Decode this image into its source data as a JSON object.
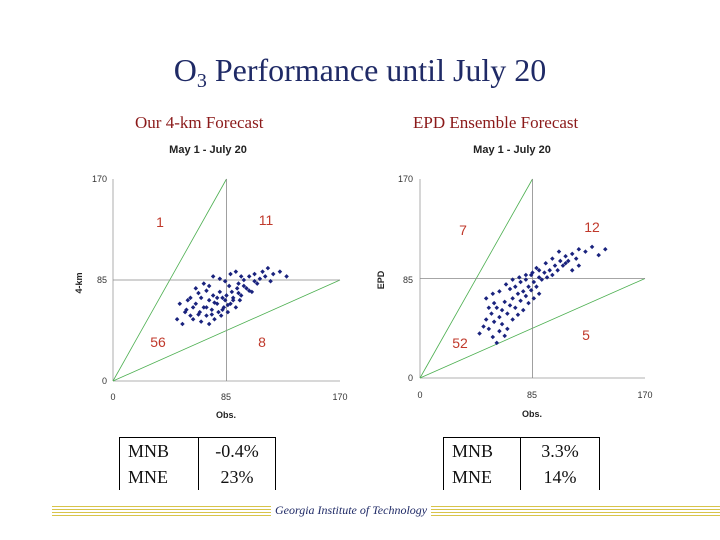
{
  "slide": {
    "title_main": "O",
    "title_sub": "3",
    "title_rest": " Performance until July 20",
    "left_heading": "Our 4-km Forecast",
    "right_heading": "EPD Ensemble Forecast",
    "footer": "Georgia Institute of Technology"
  },
  "stats_left": [
    {
      "label": "MNB",
      "value": "-0.4%"
    },
    {
      "label": "MNE",
      "value": "23%"
    }
  ],
  "stats_right": [
    {
      "label": "MNB",
      "value": "3.3%"
    },
    {
      "label": "MNE",
      "value": "14%"
    }
  ],
  "colors": {
    "points": "#1a237e",
    "quadrant_labels": "#c0392b",
    "reference_lines": "#4caf50",
    "title": "#1f2a66"
  },
  "chart_data": [
    {
      "type": "scatter",
      "title": "May 1 - July 20",
      "xlabel": "Obs.",
      "ylabel": "4-km",
      "xlim": [
        0,
        170
      ],
      "ylim": [
        0,
        170
      ],
      "x_ticks": [
        "0",
        "85",
        "170"
      ],
      "y_ticks": [
        "0",
        "85",
        "170"
      ],
      "grid": false,
      "reference_lines": [
        "y = 2x",
        "y = 0.5x",
        "x = 85",
        "y = 85"
      ],
      "quadrant_labels": {
        "upper_left": "1",
        "upper_right": "11",
        "lower_left": "56",
        "lower_right": "8"
      },
      "points": [
        [
          48,
          52
        ],
        [
          52,
          48
        ],
        [
          55,
          60
        ],
        [
          58,
          55
        ],
        [
          60,
          52
        ],
        [
          62,
          65
        ],
        [
          65,
          58
        ],
        [
          66,
          50
        ],
        [
          68,
          62
        ],
        [
          70,
          55
        ],
        [
          72,
          68
        ],
        [
          72,
          48
        ],
        [
          74,
          60
        ],
        [
          75,
          72
        ],
        [
          76,
          52
        ],
        [
          78,
          65
        ],
        [
          79,
          58
        ],
        [
          80,
          75
        ],
        [
          81,
          55
        ],
        [
          82,
          70
        ],
        [
          83,
          62
        ],
        [
          84,
          68
        ],
        [
          85,
          72
        ],
        [
          86,
          58
        ],
        [
          87,
          80
        ],
        [
          88,
          65
        ],
        [
          89,
          75
        ],
        [
          90,
          70
        ],
        [
          92,
          62
        ],
        [
          93,
          78
        ],
        [
          94,
          82
        ],
        [
          95,
          68
        ],
        [
          96,
          72
        ],
        [
          98,
          85
        ],
        [
          100,
          78
        ],
        [
          102,
          88
        ],
        [
          104,
          75
        ],
        [
          106,
          90
        ],
        [
          108,
          82
        ],
        [
          110,
          86
        ],
        [
          112,
          92
        ],
        [
          114,
          88
        ],
        [
          116,
          95
        ],
        [
          118,
          84
        ],
        [
          120,
          90
        ],
        [
          125,
          92
        ],
        [
          130,
          88
        ],
        [
          62,
          78
        ],
        [
          68,
          82
        ],
        [
          75,
          88
        ],
        [
          80,
          86
        ],
        [
          84,
          84
        ],
        [
          88,
          90
        ],
        [
          92,
          92
        ],
        [
          96,
          88
        ],
        [
          58,
          70
        ],
        [
          64,
          74
        ],
        [
          70,
          76
        ],
        [
          72,
          80
        ],
        [
          50,
          65
        ],
        [
          54,
          58
        ],
        [
          56,
          68
        ],
        [
          60,
          62
        ],
        [
          64,
          56
        ],
        [
          66,
          70
        ],
        [
          70,
          62
        ],
        [
          74,
          56
        ],
        [
          76,
          66
        ],
        [
          78,
          70
        ],
        [
          82,
          60
        ],
        [
          86,
          64
        ],
        [
          90,
          68
        ],
        [
          94,
          74
        ],
        [
          98,
          80
        ],
        [
          102,
          76
        ],
        [
          106,
          84
        ]
      ]
    },
    {
      "type": "scatter",
      "title": "May 1 - July 20",
      "xlabel": "Obs.",
      "ylabel": "EPD",
      "xlim": [
        0,
        170
      ],
      "ylim": [
        0,
        170
      ],
      "x_ticks": [
        "0",
        "85",
        "170"
      ],
      "y_ticks": [
        "0",
        "85",
        "170"
      ],
      "grid": false,
      "reference_lines": [
        "y = 2x",
        "y = 0.5x",
        "x = 85",
        "y = 85"
      ],
      "quadrant_labels": {
        "upper_left": "7",
        "upper_right": "12",
        "lower_left": "52",
        "lower_right": "5"
      },
      "points": [
        [
          45,
          38
        ],
        [
          48,
          44
        ],
        [
          50,
          50
        ],
        [
          52,
          42
        ],
        [
          54,
          55
        ],
        [
          56,
          48
        ],
        [
          58,
          60
        ],
        [
          60,
          52
        ],
        [
          62,
          58
        ],
        [
          64,
          65
        ],
        [
          66,
          55
        ],
        [
          68,
          62
        ],
        [
          70,
          68
        ],
        [
          72,
          60
        ],
        [
          74,
          72
        ],
        [
          76,
          66
        ],
        [
          78,
          74
        ],
        [
          80,
          70
        ],
        [
          82,
          78
        ],
        [
          84,
          75
        ],
        [
          86,
          82
        ],
        [
          88,
          78
        ],
        [
          90,
          86
        ],
        [
          92,
          84
        ],
        [
          94,
          90
        ],
        [
          96,
          86
        ],
        [
          98,
          92
        ],
        [
          100,
          88
        ],
        [
          102,
          96
        ],
        [
          104,
          92
        ],
        [
          106,
          100
        ],
        [
          108,
          96
        ],
        [
          110,
          104
        ],
        [
          112,
          100
        ],
        [
          115,
          106
        ],
        [
          118,
          102
        ],
        [
          120,
          110
        ],
        [
          125,
          108
        ],
        [
          130,
          112
        ],
        [
          135,
          105
        ],
        [
          140,
          110
        ],
        [
          50,
          68
        ],
        [
          55,
          72
        ],
        [
          60,
          74
        ],
        [
          65,
          80
        ],
        [
          70,
          84
        ],
        [
          75,
          86
        ],
        [
          80,
          88
        ],
        [
          85,
          90
        ],
        [
          90,
          92
        ],
        [
          95,
          98
        ],
        [
          100,
          102
        ],
        [
          105,
          108
        ],
        [
          110,
          98
        ],
        [
          115,
          92
        ],
        [
          120,
          96
        ],
        [
          62,
          46
        ],
        [
          66,
          42
        ],
        [
          70,
          50
        ],
        [
          74,
          54
        ],
        [
          78,
          58
        ],
        [
          82,
          64
        ],
        [
          86,
          68
        ],
        [
          90,
          72
        ],
        [
          55,
          35
        ],
        [
          60,
          40
        ],
        [
          58,
          30
        ],
        [
          64,
          36
        ],
        [
          52,
          60
        ],
        [
          56,
          64
        ],
        [
          68,
          76
        ],
        [
          72,
          78
        ],
        [
          76,
          82
        ],
        [
          80,
          84
        ],
        [
          84,
          88
        ],
        [
          88,
          94
        ]
      ]
    }
  ]
}
